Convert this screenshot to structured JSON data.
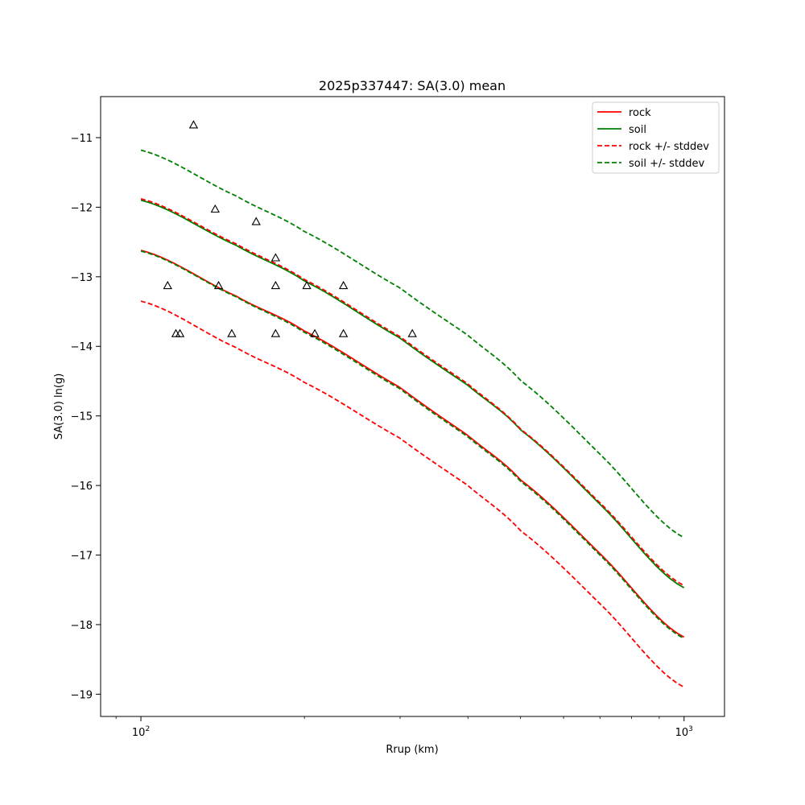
{
  "chart_data": {
    "type": "line",
    "title": "2025p337447: SA(3.0) mean",
    "xlabel": "Rrup (km)",
    "ylabel": "SA(3.0) ln(g)",
    "x_scale": "log",
    "xlim": [
      84.3,
      1187
    ],
    "ylim": [
      -19.32,
      -10.41
    ],
    "grid": false,
    "legend_placement": "top-right",
    "x_ticks": [
      {
        "value": 100,
        "base": "10",
        "exp": "2"
      },
      {
        "value": 1000,
        "base": "10",
        "exp": "3"
      }
    ],
    "x_minor_ticks": [
      200,
      300,
      400,
      500,
      600,
      700,
      800,
      900
    ],
    "y_ticks": [
      -11,
      -12,
      -13,
      -14,
      -15,
      -16,
      -17,
      -18,
      -19
    ],
    "y_tick_labels": [
      "−11",
      "−12",
      "−13",
      "−14",
      "−15",
      "−16",
      "−17",
      "−18",
      "−19"
    ],
    "series": [
      {
        "name": "rock",
        "color": "#ff0000",
        "dash": false,
        "x": [
          100,
          150,
          200,
          300,
          400,
          500,
          700,
          1000
        ],
        "y": [
          -12.62,
          -13.28,
          -13.78,
          -14.59,
          -15.28,
          -15.92,
          -16.98,
          -18.18
        ]
      },
      {
        "name": "soil",
        "color": "#008000",
        "dash": false,
        "x": [
          100,
          150,
          200,
          300,
          400,
          500,
          700,
          1000
        ],
        "y": [
          -11.9,
          -12.55,
          -13.06,
          -13.88,
          -14.56,
          -15.2,
          -16.27,
          -17.47
        ]
      },
      {
        "name": "rock +/- stddev",
        "color": "#ff0000",
        "dash": true,
        "legend": true,
        "x": [
          100,
          150,
          200,
          300,
          400,
          500,
          700,
          1000
        ],
        "y": [
          -11.88,
          -12.53,
          -13.04,
          -13.86,
          -14.54,
          -15.19,
          -16.25,
          -17.44
        ]
      },
      {
        "name": "",
        "color": "#ff0000",
        "dash": true,
        "legend": false,
        "x": [
          100,
          150,
          200,
          300,
          400,
          500,
          700,
          1000
        ],
        "y": [
          -13.35,
          -14.02,
          -14.52,
          -15.32,
          -16.0,
          -16.65,
          -17.7,
          -18.9
        ]
      },
      {
        "name": "soil +/- stddev",
        "color": "#008000",
        "dash": true,
        "legend": true,
        "x": [
          100,
          150,
          200,
          300,
          400,
          500,
          700,
          1000
        ],
        "y": [
          -11.18,
          -11.84,
          -12.35,
          -13.16,
          -13.84,
          -14.49,
          -15.55,
          -16.75
        ]
      },
      {
        "name": "",
        "color": "#008000",
        "dash": true,
        "legend": false,
        "x": [
          100,
          150,
          200,
          300,
          400,
          500,
          700,
          1000
        ],
        "y": [
          -12.63,
          -13.29,
          -13.8,
          -14.61,
          -15.3,
          -15.94,
          -17.0,
          -18.2
        ]
      }
    ],
    "observations": {
      "marker": "triangle-open",
      "color": "#000000",
      "points": [
        {
          "x": 112,
          "y": -13.13
        },
        {
          "x": 116,
          "y": -13.82
        },
        {
          "x": 118,
          "y": -13.82
        },
        {
          "x": 125,
          "y": -10.82
        },
        {
          "x": 137,
          "y": -12.03
        },
        {
          "x": 139,
          "y": -13.13
        },
        {
          "x": 147,
          "y": -13.82
        },
        {
          "x": 163,
          "y": -12.21
        },
        {
          "x": 177,
          "y": -12.73
        },
        {
          "x": 177,
          "y": -13.13
        },
        {
          "x": 177,
          "y": -13.82
        },
        {
          "x": 202,
          "y": -13.13
        },
        {
          "x": 209,
          "y": -13.82
        },
        {
          "x": 236,
          "y": -13.13
        },
        {
          "x": 236,
          "y": -13.82
        },
        {
          "x": 316,
          "y": -13.82
        }
      ]
    }
  }
}
